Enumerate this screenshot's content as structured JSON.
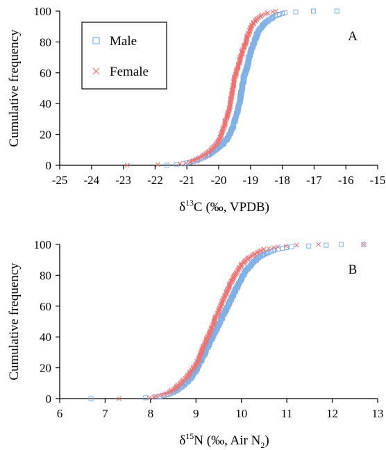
{
  "chart_data": [
    {
      "type": "scatter",
      "panel_label": "A",
      "xlabel_prefix": "δ",
      "xlabel_sup": "13",
      "xlabel_main": "C (‰, VPDB)",
      "ylabel": "Cumulative frequency",
      "xlim": [
        -25,
        -15
      ],
      "ylim": [
        0,
        100
      ],
      "xticks": [
        "-25",
        "-24",
        "-23",
        "-22",
        "-21",
        "-20",
        "-19",
        "-18",
        "-17",
        "-16",
        "-15"
      ],
      "yticks": [
        "0",
        "20",
        "40",
        "60",
        "80",
        "100"
      ],
      "legend": {
        "position": "top-left",
        "entries": [
          "Male",
          "Female"
        ]
      },
      "grid": false,
      "series": [
        {
          "name": "Male",
          "marker": "square",
          "color": "#7fb0e6",
          "points": [
            [
              -21.6,
              0
            ],
            [
              -21.1,
              1
            ],
            [
              -20.9,
              2
            ],
            [
              -20.7,
              3
            ],
            [
              -20.5,
              5
            ],
            [
              -20.3,
              7
            ],
            [
              -20.1,
              10
            ],
            [
              -19.9,
              13
            ],
            [
              -19.75,
              17
            ],
            [
              -19.6,
              22
            ],
            [
              -19.5,
              28
            ],
            [
              -19.4,
              35
            ],
            [
              -19.35,
              40
            ],
            [
              -19.3,
              46
            ],
            [
              -19.25,
              52
            ],
            [
              -19.2,
              58
            ],
            [
              -19.1,
              64
            ],
            [
              -19.05,
              70
            ],
            [
              -18.95,
              76
            ],
            [
              -18.85,
              82
            ],
            [
              -18.75,
              87
            ],
            [
              -18.6,
              91
            ],
            [
              -18.45,
              94
            ],
            [
              -18.3,
              96
            ],
            [
              -18.1,
              98
            ],
            [
              -17.9,
              99
            ],
            [
              -17.6,
              99.5
            ],
            [
              -17.0,
              100
            ],
            [
              -16.3,
              100
            ]
          ]
        },
        {
          "name": "Female",
          "marker": "x",
          "color": "#f07070",
          "points": [
            [
              -22.9,
              0
            ],
            [
              -21.9,
              0.5
            ],
            [
              -21.2,
              1
            ],
            [
              -20.9,
              2
            ],
            [
              -20.7,
              4
            ],
            [
              -20.5,
              6
            ],
            [
              -20.3,
              9
            ],
            [
              -20.1,
              13
            ],
            [
              -19.95,
              18
            ],
            [
              -19.85,
              24
            ],
            [
              -19.75,
              31
            ],
            [
              -19.65,
              38
            ],
            [
              -19.6,
              45
            ],
            [
              -19.55,
              52
            ],
            [
              -19.45,
              60
            ],
            [
              -19.35,
              67
            ],
            [
              -19.25,
              74
            ],
            [
              -19.15,
              80
            ],
            [
              -19.05,
              86
            ],
            [
              -18.95,
              91
            ],
            [
              -18.8,
              95
            ],
            [
              -18.65,
              97
            ],
            [
              -18.45,
              99
            ],
            [
              -18.2,
              100
            ]
          ]
        }
      ]
    },
    {
      "type": "scatter",
      "panel_label": "B",
      "xlabel_prefix": "δ",
      "xlabel_sup": "15",
      "xlabel_main": "N (‰, Air N",
      "xlabel_sub": "2",
      "xlabel_end": ")",
      "ylabel": "Cumulative frequency",
      "xlim": [
        6,
        13
      ],
      "ylim": [
        0,
        100
      ],
      "xticks": [
        "6",
        "7",
        "8",
        "9",
        "10",
        "11",
        "12",
        "13"
      ],
      "yticks": [
        "0",
        "20",
        "40",
        "60",
        "80",
        "100"
      ],
      "grid": false,
      "series": [
        {
          "name": "Male",
          "marker": "square",
          "color": "#7fb0e6",
          "points": [
            [
              6.7,
              0
            ],
            [
              7.9,
              0.5
            ],
            [
              8.1,
              1
            ],
            [
              8.3,
              2
            ],
            [
              8.5,
              4
            ],
            [
              8.7,
              8
            ],
            [
              8.85,
              12
            ],
            [
              9.0,
              18
            ],
            [
              9.1,
              24
            ],
            [
              9.2,
              30
            ],
            [
              9.3,
              36
            ],
            [
              9.4,
              42
            ],
            [
              9.5,
              48
            ],
            [
              9.6,
              54
            ],
            [
              9.7,
              60
            ],
            [
              9.8,
              66
            ],
            [
              9.9,
              72
            ],
            [
              10.0,
              78
            ],
            [
              10.1,
              83
            ],
            [
              10.25,
              88
            ],
            [
              10.4,
              92
            ],
            [
              10.6,
              95
            ],
            [
              10.8,
              97
            ],
            [
              11.1,
              98.5
            ],
            [
              11.5,
              99
            ],
            [
              12.2,
              100
            ],
            [
              12.7,
              100
            ]
          ]
        },
        {
          "name": "Female",
          "marker": "x",
          "color": "#f07070",
          "points": [
            [
              7.3,
              0
            ],
            [
              8.0,
              0.5
            ],
            [
              8.2,
              2
            ],
            [
              8.4,
              4
            ],
            [
              8.55,
              7
            ],
            [
              8.7,
              11
            ],
            [
              8.85,
              16
            ],
            [
              9.0,
              22
            ],
            [
              9.1,
              29
            ],
            [
              9.2,
              36
            ],
            [
              9.3,
              43
            ],
            [
              9.4,
              50
            ],
            [
              9.5,
              57
            ],
            [
              9.6,
              64
            ],
            [
              9.7,
              71
            ],
            [
              9.8,
              77
            ],
            [
              9.9,
              82
            ],
            [
              10.0,
              87
            ],
            [
              10.15,
              91
            ],
            [
              10.3,
              94
            ],
            [
              10.5,
              97
            ],
            [
              10.8,
              98.5
            ],
            [
              11.2,
              99.5
            ],
            [
              11.7,
              100
            ],
            [
              12.7,
              100
            ]
          ]
        }
      ]
    }
  ]
}
